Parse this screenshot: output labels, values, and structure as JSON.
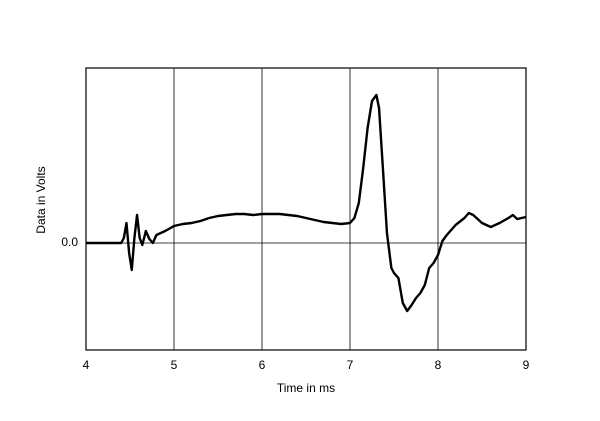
{
  "chart_data": {
    "type": "line",
    "xlabel": "Time in ms",
    "ylabel": "Data in Volts",
    "x": [
      4.0,
      4.4,
      4.43,
      4.46,
      4.49,
      4.52,
      4.55,
      4.58,
      4.61,
      4.64,
      4.68,
      4.72,
      4.76,
      4.8,
      4.85,
      4.9,
      5.0,
      5.1,
      5.2,
      5.3,
      5.4,
      5.5,
      5.6,
      5.7,
      5.8,
      5.9,
      6.0,
      6.1,
      6.2,
      6.3,
      6.4,
      6.5,
      6.6,
      6.7,
      6.8,
      6.9,
      7.0,
      7.05,
      7.1,
      7.15,
      7.2,
      7.25,
      7.3,
      7.33,
      7.37,
      7.42,
      7.47,
      7.5,
      7.55,
      7.6,
      7.65,
      7.7,
      7.75,
      7.8,
      7.85,
      7.9,
      7.95,
      8.0,
      8.05,
      8.1,
      8.2,
      8.3,
      8.35,
      8.4,
      8.5,
      8.6,
      8.7,
      8.8,
      8.85,
      8.9,
      9.0
    ],
    "values": [
      0,
      0,
      0.05,
      0.2,
      -0.1,
      -0.27,
      0.05,
      0.28,
      0.05,
      -0.02,
      0.12,
      0.04,
      0,
      0.08,
      0.1,
      0.12,
      0.17,
      0.19,
      0.2,
      0.22,
      0.25,
      0.27,
      0.28,
      0.29,
      0.29,
      0.28,
      0.29,
      0.29,
      0.29,
      0.28,
      0.27,
      0.25,
      0.23,
      0.21,
      0.2,
      0.19,
      0.2,
      0.25,
      0.4,
      0.75,
      1.15,
      1.42,
      1.48,
      1.35,
      0.8,
      0.1,
      -0.25,
      -0.3,
      -0.35,
      -0.6,
      -0.68,
      -0.62,
      -0.55,
      -0.5,
      -0.42,
      -0.25,
      -0.2,
      -0.12,
      0.02,
      0.08,
      0.18,
      0.25,
      0.3,
      0.28,
      0.2,
      0.16,
      0.2,
      0.25,
      0.28,
      0.24,
      0.26
    ],
    "color": "#000000",
    "xlim": [
      4,
      9
    ],
    "xticks": [
      4,
      5,
      6,
      7,
      8,
      9
    ],
    "ylim": [
      -1.07,
      1.75
    ],
    "yticks": [
      {
        "value": 0,
        "label": "0.0"
      }
    ],
    "grid": true
  }
}
